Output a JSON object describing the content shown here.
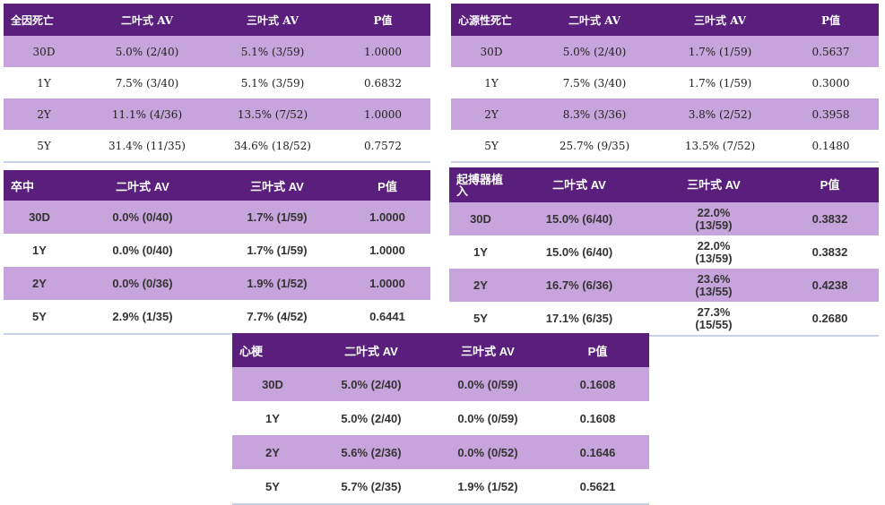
{
  "colors": {
    "header": "#5a1e7c",
    "alt_row": "#c7a4dc"
  },
  "tables": [
    {
      "id": "t1",
      "style": "serif",
      "name": "all-cause-death-table",
      "headers": [
        "全因死亡",
        "二叶式 AV",
        "三叶式 AV",
        "P值"
      ],
      "rows": [
        [
          "30D",
          "5.0% (2/40)",
          "5.1% (3/59)",
          "1.0000"
        ],
        [
          "1Y",
          "7.5% (3/40)",
          "5.1% (3/59)",
          "0.6832"
        ],
        [
          "2Y",
          "11.1% (4/36)",
          "13.5% (7/52)",
          "1.0000"
        ],
        [
          "5Y",
          "31.4% (11/35)",
          "34.6% (18/52)",
          "0.7572"
        ]
      ]
    },
    {
      "id": "t2",
      "style": "serif",
      "name": "cardiac-death-table",
      "headers": [
        "心源性死亡",
        "二叶式 AV",
        "三叶式 AV",
        "P值"
      ],
      "rows": [
        [
          "30D",
          "5.0% (2/40)",
          "1.7% (1/59)",
          "0.5637"
        ],
        [
          "1Y",
          "7.5% (3/40)",
          "1.7% (1/59)",
          "0.3000"
        ],
        [
          "2Y",
          "8.3% (3/36)",
          "3.8% (2/52)",
          "0.3958"
        ],
        [
          "5Y",
          "25.7% (9/35)",
          "13.5% (7/52)",
          "0.1480"
        ]
      ]
    },
    {
      "id": "t3",
      "style": "sans",
      "name": "stroke-table",
      "headers": [
        "卒中",
        "二叶式 AV",
        "三叶式 AV",
        "P值"
      ],
      "rows": [
        [
          "30D",
          "0.0% (0/40)",
          "1.7% (1/59)",
          "1.0000"
        ],
        [
          "1Y",
          "0.0% (0/40)",
          "1.7% (1/59)",
          "1.0000"
        ],
        [
          "2Y",
          "0.0% (0/36)",
          "1.9% (1/52)",
          "1.0000"
        ],
        [
          "5Y",
          "2.9% (1/35)",
          "7.7% (4/52)",
          "0.6441"
        ]
      ]
    },
    {
      "id": "t4",
      "style": "sans",
      "name": "pacemaker-table",
      "headers": [
        "起搏器植入",
        "二叶式 AV",
        "三叶式 AV",
        "P值"
      ],
      "rows": [
        [
          "30D",
          "15.0% (6/40)",
          "22.0% (13/59)",
          "0.3832"
        ],
        [
          "1Y",
          "15.0% (6/40)",
          "22.0% (13/59)",
          "0.3832"
        ],
        [
          "2Y",
          "16.7% (6/36)",
          "23.6% (13/55)",
          "0.4238"
        ],
        [
          "5Y",
          "17.1% (6/35)",
          "27.3% (15/55)",
          "0.2680"
        ]
      ]
    },
    {
      "id": "t5",
      "style": "sans",
      "name": "myocardial-infarction-table",
      "headers": [
        "心梗",
        "二叶式 AV",
        "三叶式 AV",
        "P值"
      ],
      "rows": [
        [
          "30D",
          "5.0% (2/40)",
          "0.0% (0/59)",
          "0.1608"
        ],
        [
          "1Y",
          "5.0% (2/40)",
          "0.0% (0/59)",
          "0.1608"
        ],
        [
          "2Y",
          "5.6% (2/36)",
          "0.0% (0/52)",
          "0.1646"
        ],
        [
          "5Y",
          "5.7% (2/35)",
          "1.9% (1/52)",
          "0.5621"
        ]
      ]
    }
  ]
}
